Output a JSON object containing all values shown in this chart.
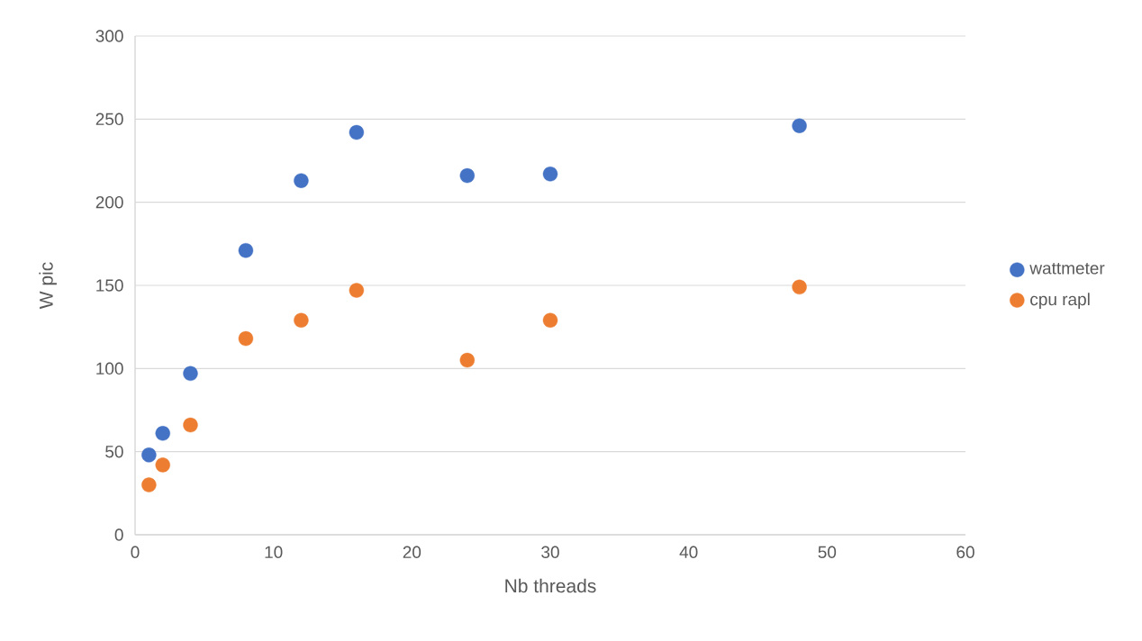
{
  "chart_data": {
    "type": "scatter",
    "xlabel": "Nb threads",
    "ylabel": "W pic",
    "xlim": [
      0,
      60
    ],
    "xticks": [
      0,
      10,
      20,
      30,
      40,
      50,
      60
    ],
    "ylim": [
      0,
      300
    ],
    "yticks": [
      0,
      50,
      100,
      150,
      200,
      250,
      300
    ],
    "grid": "y",
    "legend": "right",
    "marker": "circle",
    "series": [
      {
        "name": "wattmeter",
        "color": "#4472c4",
        "x": [
          1,
          2,
          4,
          8,
          12,
          16,
          24,
          30,
          48
        ],
        "values": [
          48,
          61,
          97,
          171,
          213,
          242,
          216,
          217,
          246
        ]
      },
      {
        "name": "cpu rapl",
        "color": "#ed7d31",
        "x": [
          1,
          2,
          4,
          8,
          12,
          16,
          24,
          30,
          48
        ],
        "values": [
          30,
          42,
          66,
          118,
          129,
          147,
          105,
          129,
          149
        ]
      }
    ]
  }
}
